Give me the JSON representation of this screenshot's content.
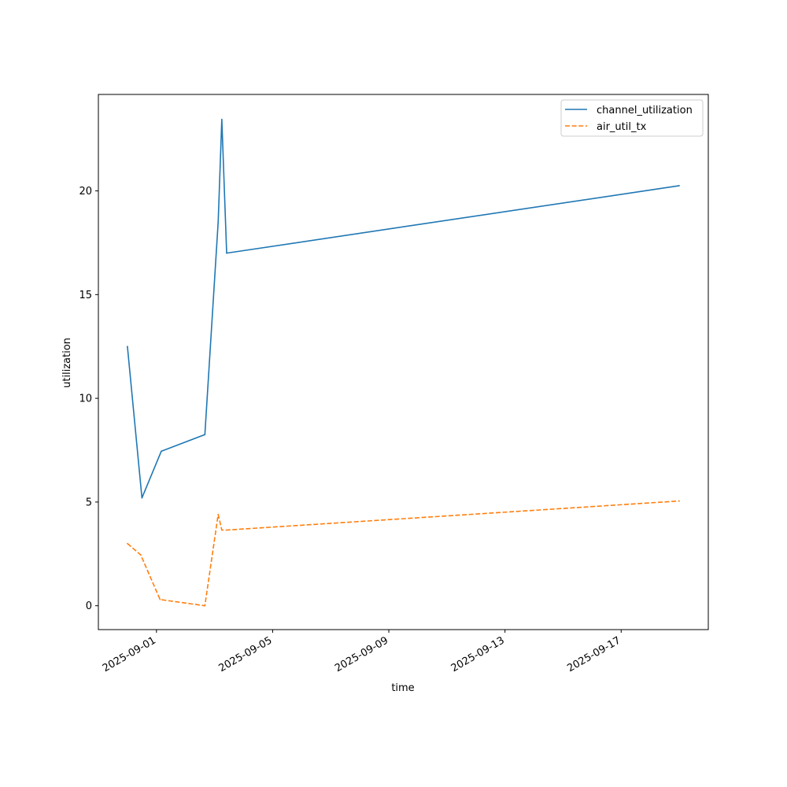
{
  "chart_data": {
    "type": "line",
    "title": "",
    "xlabel": "time",
    "ylabel": "utilization",
    "x_type": "date",
    "xlim": [
      "2025-08-30",
      "2025-09-20"
    ],
    "ylim": [
      -1.15,
      24.65
    ],
    "x_ticks": [
      "2025-09-01",
      "2025-09-05",
      "2025-09-09",
      "2025-09-13",
      "2025-09-17"
    ],
    "y_ticks": [
      0,
      5,
      10,
      15,
      20
    ],
    "grid": false,
    "legend": "top-right",
    "series": [
      {
        "name": "channel_utilization",
        "color": "#1f77b4",
        "line_style": "solid",
        "x": [
          "2025-08-31 00:00",
          "2025-08-31 12:00",
          "2025-09-01 04:00",
          "2025-09-02 16:00",
          "2025-09-03 03:00",
          "2025-09-03 06:00",
          "2025-09-03 10:00"
        ],
        "y": [
          12.5,
          5.2,
          7.45,
          8.25,
          18.5,
          23.45,
          17.0
        ]
      },
      {
        "name": "channel_utilization",
        "color": "#1f77b4",
        "line_style": "solid",
        "x": [
          "2025-09-03 10:00",
          "2025-09-19 00:00"
        ],
        "y": [
          17.0,
          20.25
        ]
      },
      {
        "name": "air_util_tx",
        "color": "#ff7f0e",
        "line_style": "dashed",
        "x": [
          "2025-08-31 00:00",
          "2025-08-31 11:00",
          "2025-09-01 03:00",
          "2025-09-02 16:00",
          "2025-09-03 03:00",
          "2025-09-03 06:00",
          "2025-09-03 10:00",
          "2025-09-19 00:00"
        ],
        "y": [
          3.0,
          2.45,
          0.3,
          0.0,
          4.4,
          3.65,
          3.65,
          5.05
        ]
      }
    ]
  }
}
